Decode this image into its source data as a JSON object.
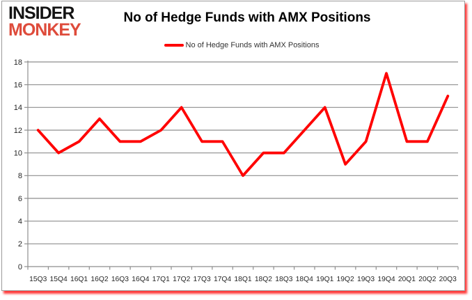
{
  "page": {
    "background": "#ffffff",
    "card_border_color": "#9b9b9b",
    "card_shadow_color": "#ff0000"
  },
  "logo": {
    "line1": "INSIDER",
    "line2": "MONKEY",
    "line1_color": "#141414",
    "line2_color": "#de4b3b"
  },
  "header": {
    "title": "No of Hedge Funds with AMX Positions"
  },
  "legend": {
    "label": "No of Hedge Funds with AMX Positions",
    "marker_color": "#ff0000"
  },
  "chart_data": {
    "type": "line",
    "title": "No of Hedge Funds with AMX Positions",
    "categories": [
      "15Q3",
      "15Q4",
      "16Q1",
      "16Q2",
      "16Q3",
      "16Q4",
      "17Q1",
      "17Q2",
      "17Q3",
      "17Q4",
      "18Q1",
      "18Q2",
      "18Q3",
      "18Q4",
      "19Q1",
      "19Q2",
      "19Q3",
      "19Q4",
      "20Q1",
      "20Q2",
      "20Q3"
    ],
    "series": [
      {
        "name": "No of Hedge Funds with AMX Positions",
        "color": "#ff0000",
        "values": [
          12,
          10,
          11,
          13,
          11,
          11,
          12,
          14,
          11,
          11,
          8,
          10,
          10,
          12,
          14,
          9,
          11,
          17,
          11,
          11,
          15
        ]
      }
    ],
    "xlabel": "",
    "ylabel": "",
    "ylim": [
      0,
      18
    ],
    "yticks": [
      0,
      2,
      4,
      6,
      8,
      10,
      12,
      14,
      16,
      18
    ],
    "grid": true,
    "gridline_color": "#8e8e8e",
    "axis_color": "#8e8e8e",
    "axis_label_color": "#262626",
    "legend_position": "top"
  }
}
